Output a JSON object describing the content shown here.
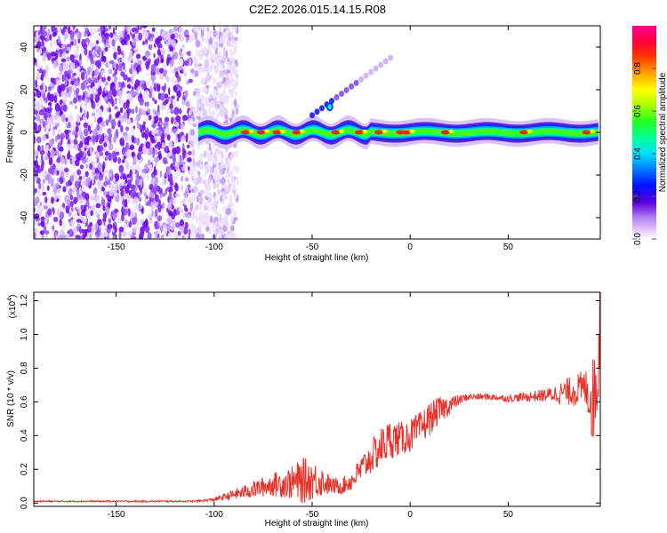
{
  "chart_data": [
    {
      "type": "heatmap",
      "title": "C2E2.2026.015.14.15.R08",
      "xlabel": "Height of straight line (km)",
      "ylabel": "Frequency (Hz)",
      "xlim": [
        -192,
        97
      ],
      "ylim": [
        -50,
        50
      ],
      "xticks": [
        -150,
        -100,
        -50,
        0,
        50
      ],
      "yticks": [
        -40,
        -20,
        0,
        20,
        40
      ],
      "colorbar": {
        "label": "Normalized spectral amplitude",
        "range": [
          0.0,
          1.0
        ],
        "ticks": [
          0.0,
          0.2,
          0.4,
          0.6,
          0.8
        ],
        "tick_labels": [
          "0.0",
          "0.2",
          "0.4",
          "0.6",
          "0.8"
        ]
      },
      "features": {
        "noise_region_x": [
          -192,
          -100
        ],
        "signal_band_start_x": -108,
        "signal_band_center_hz": 0,
        "branch_from": [
          -50,
          8
        ],
        "branch_to": [
          -10,
          35
        ]
      }
    },
    {
      "type": "line",
      "series_name": "SNR",
      "xlabel": "Height of straight line (km)",
      "ylabel": "SNR (10 * v/v)",
      "y_multiplier": "(x10",
      "y_multiplier_exp": "4",
      "y_multiplier_close": ")",
      "xlim": [
        -192,
        97
      ],
      "ylim": [
        -0.02,
        1.25
      ],
      "xticks": [
        -150,
        -100,
        -50,
        0,
        50
      ],
      "yticks": [
        0.0,
        0.2,
        0.4,
        0.6,
        0.8,
        1.0,
        1.2
      ],
      "ytick_labels": [
        "0.0",
        "0.2",
        "0.4",
        "0.6",
        "0.8",
        "1.0",
        "1.2"
      ],
      "color": "#e8322b",
      "envelope": {
        "x": [
          -192,
          -110,
          -100,
          -90,
          -80,
          -70,
          -60,
          -55,
          -50,
          -45,
          -40,
          -35,
          -30,
          -25,
          -20,
          -15,
          -10,
          -5,
          0,
          5,
          10,
          15,
          20,
          25,
          30,
          40,
          50,
          60,
          70,
          80,
          85,
          90,
          93,
          95,
          97
        ],
        "base": [
          0.01,
          0.01,
          0.02,
          0.05,
          0.08,
          0.11,
          0.12,
          0.13,
          0.14,
          0.13,
          0.1,
          0.1,
          0.13,
          0.2,
          0.27,
          0.33,
          0.38,
          0.38,
          0.4,
          0.44,
          0.5,
          0.55,
          0.58,
          0.61,
          0.63,
          0.63,
          0.62,
          0.63,
          0.64,
          0.66,
          0.67,
          0.68,
          0.6,
          0.7,
          1.1
        ],
        "amp": [
          0.004,
          0.005,
          0.01,
          0.03,
          0.05,
          0.07,
          0.1,
          0.14,
          0.12,
          0.09,
          0.05,
          0.05,
          0.06,
          0.08,
          0.1,
          0.12,
          0.12,
          0.1,
          0.1,
          0.1,
          0.1,
          0.08,
          0.06,
          0.03,
          0.02,
          0.02,
          0.02,
          0.03,
          0.04,
          0.08,
          0.1,
          0.12,
          0.25,
          0.3,
          0.35
        ]
      }
    }
  ]
}
